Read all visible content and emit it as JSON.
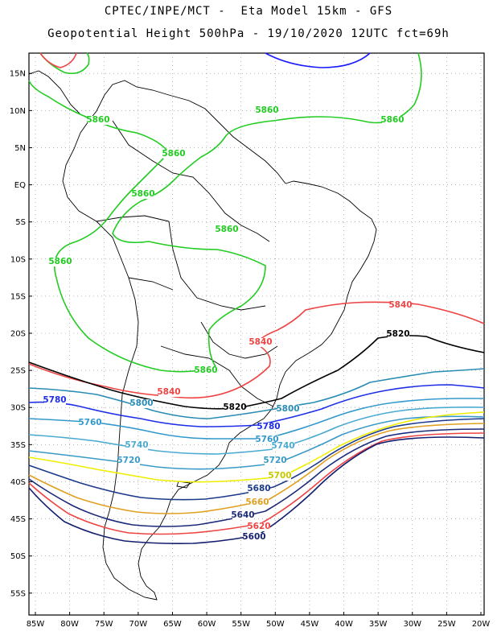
{
  "title_line1": "CPTEC/INPE/MCT -  Eta Model 15km - GFS",
  "title_line2": "Geopotential Height 500hPa - 19/10/2020 12UTC fct=69h",
  "lat_labels": [
    "15N",
    "10N",
    "5N",
    "EQ",
    "5S",
    "10S",
    "15S",
    "20S",
    "25S",
    "30S",
    "35S",
    "40S",
    "45S",
    "50S",
    "55S"
  ],
  "lon_labels": [
    "85W",
    "80W",
    "75W",
    "70W",
    "65W",
    "60W",
    "55W",
    "50W",
    "45W",
    "40W",
    "35W",
    "30W",
    "25W",
    "20W"
  ],
  "colors": {
    "c5880": "#1a1aff",
    "c5860": "#22cc22",
    "c5840": "#ee4444",
    "c5820": "#000000",
    "c5800": "#2a8cb4",
    "c5780": "#1e2ee6",
    "c5760": "#3399cc",
    "c5740": "#4aaad0",
    "c5720": "#3a9ac8",
    "c5700": "#eeee00",
    "c5680": "#1c3a8a",
    "c5660": "#e0a020",
    "c5640": "#1c2a7a",
    "c5620": "#ee4444",
    "c5600": "#141e6e",
    "coast": "#000000",
    "grid": "#888888"
  },
  "contour_labels": [
    {
      "text": "5860",
      "color": "#22cc22"
    },
    {
      "text": "5860",
      "color": "#22cc22"
    },
    {
      "text": "5860",
      "color": "#22cc22"
    },
    {
      "text": "5860",
      "color": "#22cc22"
    },
    {
      "text": "5860",
      "color": "#22cc22"
    },
    {
      "text": "5860",
      "color": "#22cc22"
    },
    {
      "text": "5860",
      "color": "#22cc22"
    },
    {
      "text": "5860",
      "color": "#22cc22"
    },
    {
      "text": "5840",
      "color": "#ee4444"
    },
    {
      "text": "5840",
      "color": "#ee4444"
    },
    {
      "text": "5840",
      "color": "#ee4444"
    },
    {
      "text": "5820",
      "color": "#000000"
    },
    {
      "text": "5820",
      "color": "#000000"
    },
    {
      "text": "5800",
      "color": "#2a8cb4"
    },
    {
      "text": "5800",
      "color": "#2a8cb4"
    },
    {
      "text": "5780",
      "color": "#1e2ee6"
    },
    {
      "text": "5780",
      "color": "#1e2ee6"
    },
    {
      "text": "5760",
      "color": "#3399cc"
    },
    {
      "text": "5760",
      "color": "#3399cc"
    },
    {
      "text": "5740",
      "color": "#4aaad0"
    },
    {
      "text": "5740",
      "color": "#4aaad0"
    },
    {
      "text": "5720",
      "color": "#3a9ac8"
    },
    {
      "text": "5720",
      "color": "#3a9ac8"
    },
    {
      "text": "5700",
      "color": "#c8c800"
    },
    {
      "text": "5680",
      "color": "#1c3a8a"
    },
    {
      "text": "5660",
      "color": "#e0a020"
    },
    {
      "text": "5640",
      "color": "#1c2a7a"
    },
    {
      "text": "5620",
      "color": "#ee4444"
    },
    {
      "text": "5600",
      "color": "#141e6e"
    }
  ]
}
